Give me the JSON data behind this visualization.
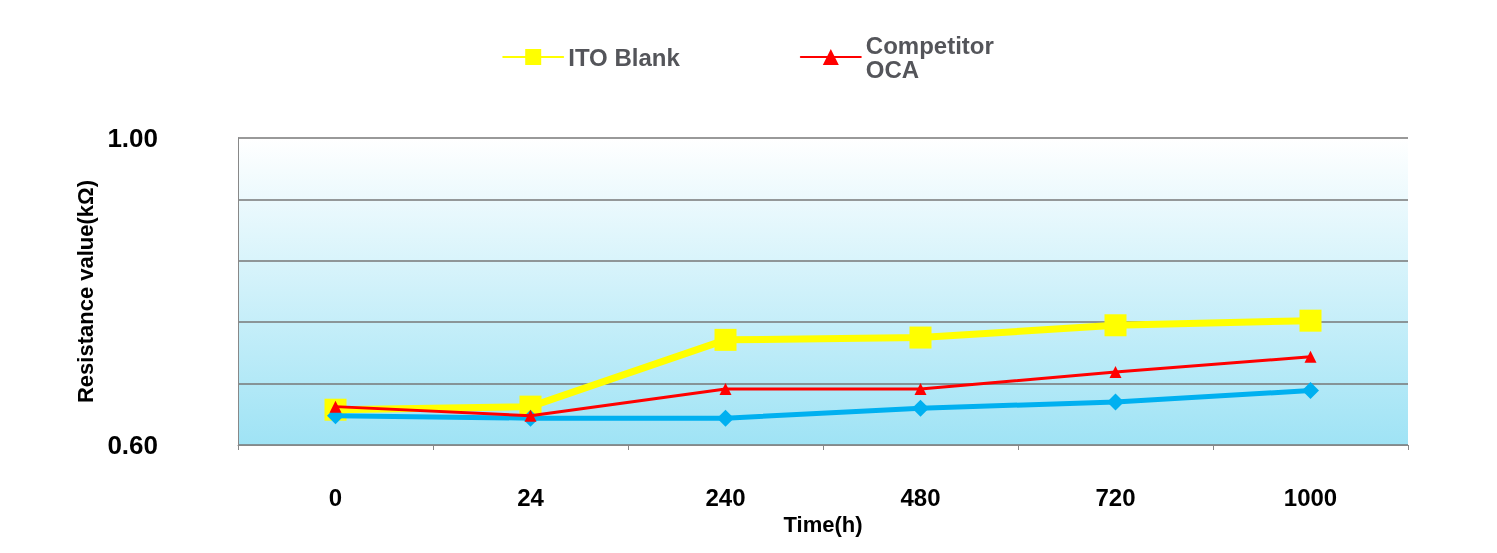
{
  "chart_data": {
    "type": "line",
    "xlabel": "Time(h)",
    "ylabel": "Resistance value(kΩ)",
    "categories": [
      "0",
      "24",
      "240",
      "480",
      "720",
      "1000"
    ],
    "series": [
      {
        "name": "ITO Blank",
        "color": "#ffff00",
        "marker": "square",
        "values": [
          0.646,
          0.65,
          0.737,
          0.74,
          0.756,
          0.762
        ]
      },
      {
        "color": "#00b0f0",
        "marker": "diamond",
        "values": [
          0.638,
          0.635,
          0.635,
          0.648,
          0.656,
          0.671
        ]
      },
      {
        "name": "Competitor\nOCA",
        "color": "#ff0000",
        "marker": "triangle",
        "values": [
          0.65,
          0.638,
          0.673,
          0.673,
          0.695,
          0.715
        ]
      }
    ],
    "ylim": [
      0.6,
      1.0
    ],
    "yticks": [
      {
        "value": 0.6,
        "label": "0.60"
      },
      {
        "value": 0.68,
        "label": null
      },
      {
        "value": 0.76,
        "label": null
      },
      {
        "value": 0.84,
        "label": null
      },
      {
        "value": 0.92,
        "label": null
      },
      {
        "value": 1.0,
        "label": "1.00"
      }
    ],
    "grid": "y",
    "legend": "top",
    "line_style": "solid"
  }
}
